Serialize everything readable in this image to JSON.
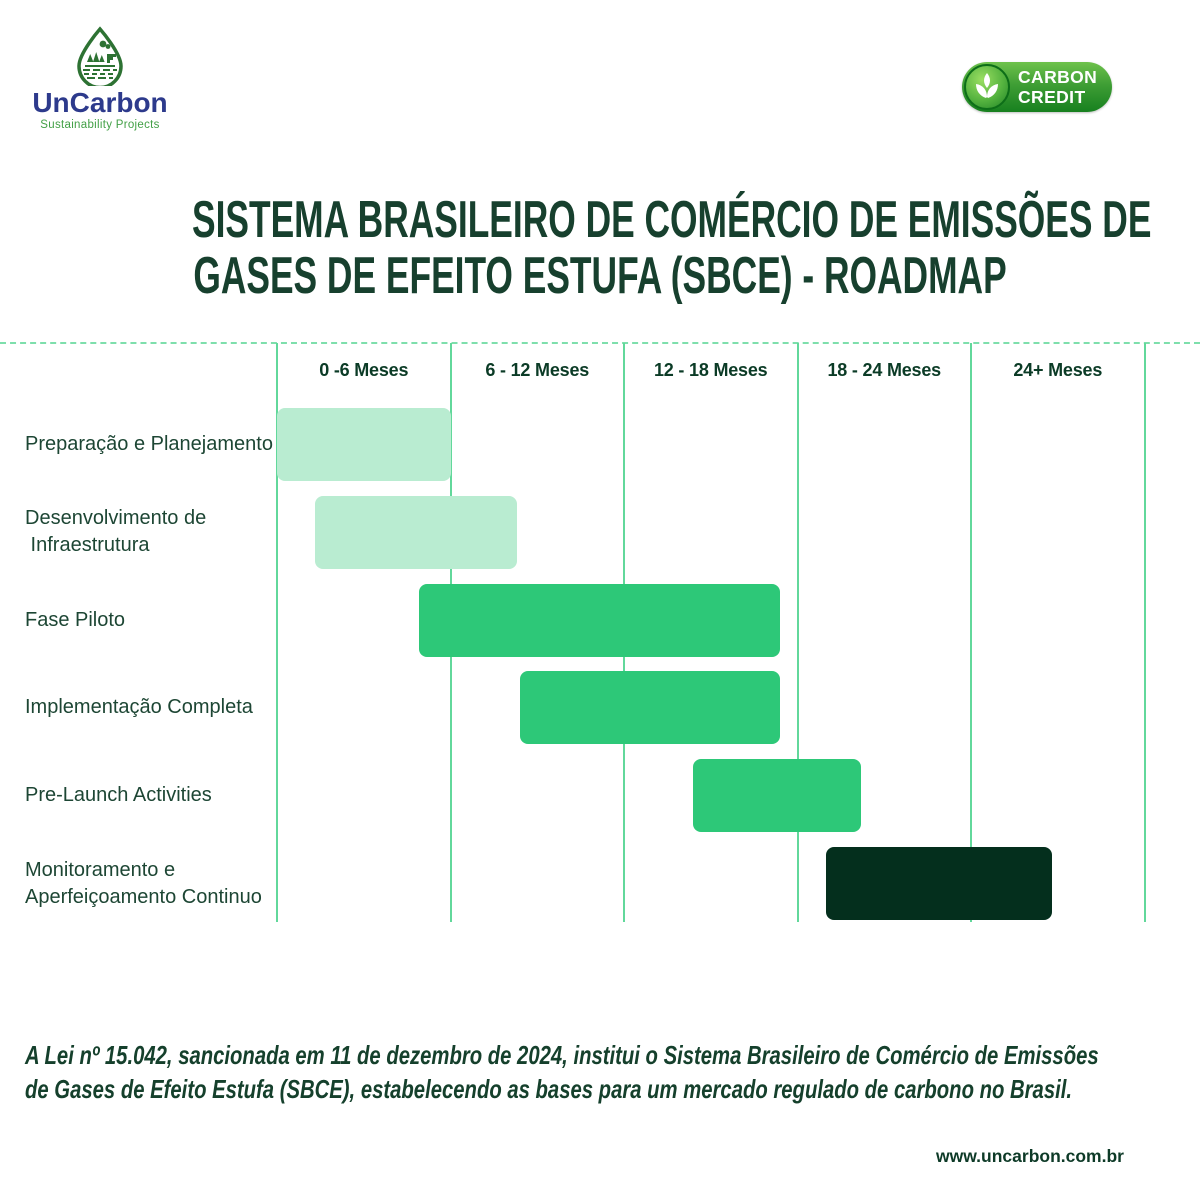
{
  "logo": {
    "name": "UnCarbon",
    "subtitle": "Sustainability Projects",
    "name_color": "#2d3a8c",
    "subtitle_color": "#43a047",
    "droplet_color": "#2d7233"
  },
  "badge": {
    "line1": "CARBON",
    "line2": "CREDIT",
    "gradient_top": "#6ec24c",
    "gradient_bottom": "#17801f"
  },
  "title": {
    "line1": "SISTEMA BRASILEIRO DE COMÉRCIO DE EMISSÕES DE",
    "line2": "GASES DE EFEITO ESTUFA (SBCE) - ROADMAP",
    "color": "#17402e"
  },
  "chart_data": {
    "type": "bar",
    "subtype": "gantt",
    "title": "SBCE roadmap timeline",
    "x_unit": "meses",
    "x_range": [
      0,
      30
    ],
    "columns": [
      "0 -6 Meses",
      "6 - 12 Meses",
      "12 - 18 Meses",
      "18 - 24 Meses",
      "24+ Meses"
    ],
    "rows": [
      {
        "label_lines": [
          "Preparação e Planejamento"
        ],
        "start_month": 0,
        "end_month": 6,
        "color": "#b9ecd1"
      },
      {
        "label_lines": [
          "Desenvolvimento de",
          " Infraestrutura"
        ],
        "start_month": 1.3,
        "end_month": 8.3,
        "color": "#b9ecd1"
      },
      {
        "label_lines": [
          "Fase Piloto"
        ],
        "start_month": 4.9,
        "end_month": 17.4,
        "color": "#2dc878"
      },
      {
        "label_lines": [
          "Implementação Completa"
        ],
        "start_month": 8.4,
        "end_month": 17.4,
        "color": "#2dc878"
      },
      {
        "label_lines": [
          "Pre-Launch Activities"
        ],
        "start_month": 14.4,
        "end_month": 20.2,
        "color": "#2dc878"
      },
      {
        "label_lines": [
          "Monitoramento e",
          "Aperfeiçoamento Continuo"
        ],
        "start_month": 19.0,
        "end_month": 26.8,
        "color": "#042f1d"
      }
    ],
    "grid_line_color": "#62d89b",
    "dashed_line_color": "#7edfac",
    "legend": "none",
    "grid": "vertical-only"
  },
  "footer": {
    "note_lines": [
      "A Lei nº 15.042, sancionada em 11 de dezembro de 2024, institui o Sistema Brasileiro de Comércio de Emissões",
      "de Gases de Efeito Estufa (SBCE), estabelecendo as bases para um mercado regulado de carbono no Brasil."
    ],
    "website": "www.uncarbon.com.br"
  }
}
